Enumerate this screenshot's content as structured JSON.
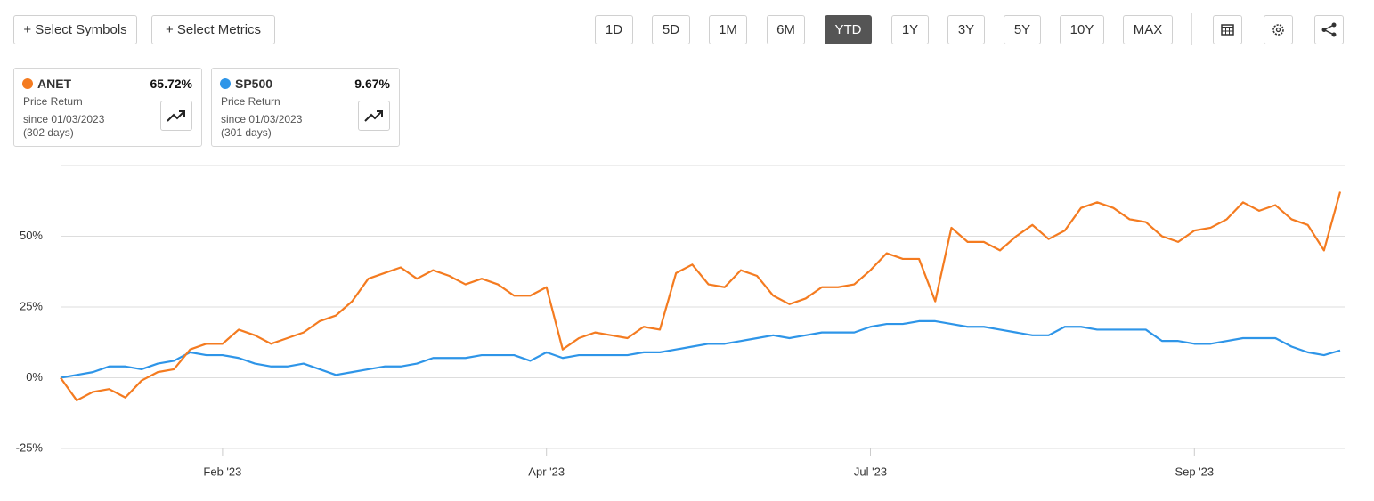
{
  "toolbar": {
    "select_symbols": "+ Select Symbols",
    "select_metrics": "+ Select Metrics",
    "periods": [
      "1D",
      "5D",
      "1M",
      "6M",
      "YTD",
      "1Y",
      "3Y",
      "5Y",
      "10Y",
      "MAX"
    ],
    "active_period": "YTD"
  },
  "chart_data": {
    "type": "line",
    "categories": [
      null,
      null,
      null,
      null,
      null,
      null,
      null,
      null,
      null,
      null,
      "Feb '23",
      null,
      null,
      null,
      null,
      null,
      null,
      null,
      null,
      null,
      null,
      null,
      null,
      null,
      null,
      null,
      null,
      null,
      null,
      null,
      "Apr '23",
      null,
      null,
      null,
      null,
      null,
      null,
      null,
      null,
      null,
      null,
      null,
      null,
      null,
      null,
      null,
      null,
      null,
      null,
      null,
      "Jul '23",
      null,
      null,
      null,
      null,
      null,
      null,
      null,
      null,
      null,
      null,
      null,
      null,
      null,
      null,
      null,
      null,
      null,
      null,
      null,
      "Sep '23",
      null,
      null,
      null,
      null,
      null,
      null,
      null,
      null,
      null
    ],
    "series": [
      {
        "name": "ANET",
        "color": "#f47b20",
        "return_label": "65.72%",
        "metric": "Price Return",
        "since": "since 01/03/2023",
        "days": "(302 days)",
        "values": [
          0,
          -8,
          -5,
          -4,
          -7,
          -1,
          2,
          3,
          10,
          12,
          12,
          17,
          15,
          12,
          14,
          16,
          20,
          22,
          27,
          35,
          37,
          39,
          35,
          38,
          36,
          33,
          35,
          33,
          29,
          29,
          32,
          10,
          14,
          16,
          15,
          14,
          18,
          17,
          37,
          40,
          33,
          32,
          38,
          36,
          29,
          26,
          28,
          32,
          32,
          33,
          38,
          44,
          42,
          42,
          27,
          53,
          48,
          48,
          45,
          50,
          54,
          49,
          52,
          60,
          62,
          60,
          56,
          55,
          50,
          48,
          52,
          53,
          56,
          62,
          59,
          61,
          56,
          54,
          45,
          65.72
        ]
      },
      {
        "name": "SP500",
        "color": "#2e95e8",
        "return_label": "9.67%",
        "metric": "Price Return",
        "since": "since 01/03/2023",
        "days": "(301 days)",
        "values": [
          0,
          1,
          2,
          4,
          4,
          3,
          5,
          6,
          9,
          8,
          8,
          7,
          5,
          4,
          4,
          5,
          3,
          1,
          2,
          3,
          4,
          4,
          5,
          7,
          7,
          7,
          8,
          8,
          8,
          6,
          9,
          7,
          8,
          8,
          8,
          8,
          9,
          9,
          10,
          11,
          12,
          12,
          13,
          14,
          15,
          14,
          15,
          16,
          16,
          16,
          18,
          19,
          19,
          20,
          20,
          19,
          18,
          18,
          17,
          16,
          15,
          15,
          18,
          18,
          17,
          17,
          17,
          17,
          13,
          13,
          12,
          12,
          13,
          14,
          14,
          14,
          11,
          9,
          8,
          9.67
        ]
      }
    ],
    "ylim": [
      -25,
      75
    ],
    "yticks": [
      {
        "value": -25,
        "label": "-25%"
      },
      {
        "value": 0,
        "label": "0%"
      },
      {
        "value": 25,
        "label": "25%"
      },
      {
        "value": 50,
        "label": "50%"
      }
    ],
    "grid": true
  }
}
